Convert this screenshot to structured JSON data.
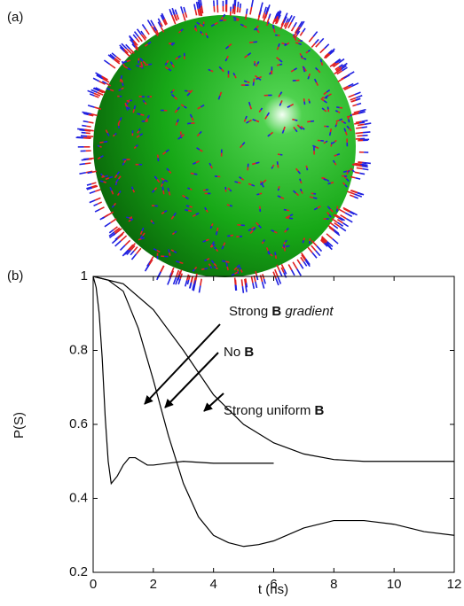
{
  "panel_labels": [
    "(a)",
    "(b)"
  ],
  "chart_data": {
    "type": "line",
    "xlabel": "t (ns)",
    "ylabel": "P(S)",
    "xlim": [
      0,
      12
    ],
    "ylim": [
      0.2,
      1
    ],
    "xticks": [
      0,
      2,
      4,
      6,
      8,
      10,
      12
    ],
    "yticks": [
      0.2,
      0.4,
      0.6,
      0.8,
      1
    ],
    "series": [
      {
        "color": "#000000",
        "x": [
          0,
          0.1,
          0.2,
          0.3,
          0.4,
          0.5,
          0.6,
          0.8,
          1.0,
          1.2,
          1.4,
          1.6,
          1.8,
          2.0,
          2.5,
          3,
          4,
          5,
          6
        ],
        "values": [
          1,
          0.97,
          0.9,
          0.78,
          0.62,
          0.5,
          0.44,
          0.46,
          0.49,
          0.51,
          0.51,
          0.5,
          0.49,
          0.49,
          0.495,
          0.5,
          0.495,
          0.495,
          0.495
        ]
      },
      {
        "color": "#000000",
        "x": [
          0,
          0.5,
          1,
          1.5,
          2,
          2.5,
          3,
          3.5,
          4,
          4.5,
          5,
          5.5,
          6,
          7,
          8,
          9,
          10,
          11,
          12
        ],
        "values": [
          1,
          0.99,
          0.96,
          0.86,
          0.72,
          0.57,
          0.44,
          0.35,
          0.3,
          0.28,
          0.27,
          0.275,
          0.285,
          0.32,
          0.34,
          0.34,
          0.33,
          0.31,
          0.3
        ]
      },
      {
        "color": "#000000",
        "x": [
          0,
          1,
          2,
          3,
          4,
          5,
          6,
          7,
          8,
          9,
          10,
          11,
          12
        ],
        "values": [
          1,
          0.98,
          0.91,
          0.8,
          0.68,
          0.6,
          0.55,
          0.52,
          0.505,
          0.5,
          0.5,
          0.5,
          0.5
        ]
      }
    ],
    "annotations": [
      {
        "parts": [
          "Strong ",
          "B",
          " gradient"
        ]
      },
      {
        "parts": [
          "No ",
          "B"
        ]
      },
      {
        "parts": [
          "Strong uniform ",
          "B"
        ]
      }
    ]
  }
}
